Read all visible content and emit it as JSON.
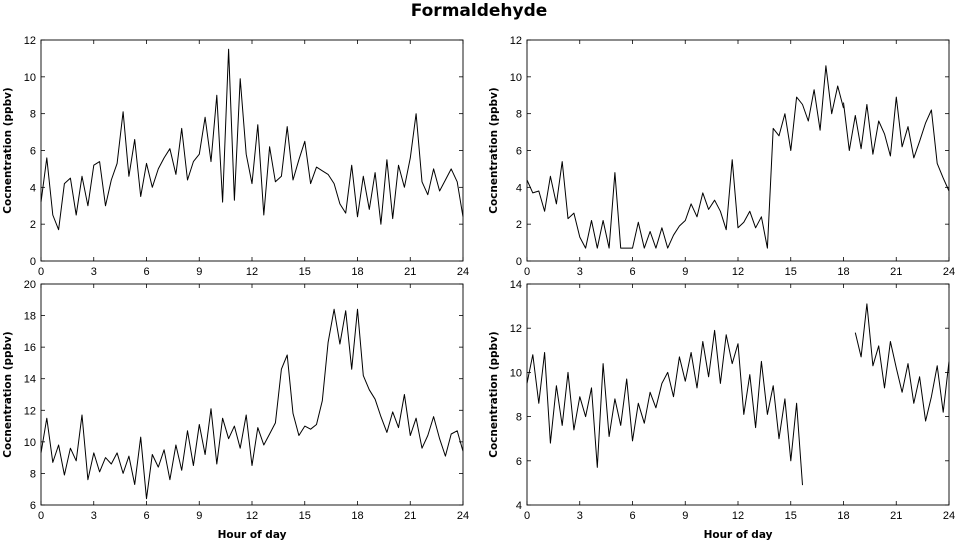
{
  "title": "Formaldehyde",
  "chart_data": [
    {
      "type": "line",
      "title": "",
      "xlabel": "",
      "ylabel": "Cocnentration (ppbv)",
      "xlim": [
        0,
        24
      ],
      "ylim": [
        0,
        12
      ],
      "xticks": [
        0,
        3,
        6,
        9,
        12,
        15,
        18,
        21,
        24
      ],
      "yticks": [
        0,
        2,
        4,
        6,
        8,
        10,
        12
      ],
      "grid": false,
      "series": [
        {
          "x": [
            0.0,
            0.33,
            0.67,
            1.0,
            1.33,
            1.67,
            2.0,
            2.33,
            2.67,
            3.0,
            3.33,
            3.67,
            4.0,
            4.33,
            4.67,
            5.0,
            5.33,
            5.67,
            6.0,
            6.33,
            6.67,
            7.0,
            7.33,
            7.67,
            8.0,
            8.33,
            8.67,
            9.0,
            9.33,
            9.67,
            10.0,
            10.33,
            10.67,
            11.0,
            11.33,
            11.67,
            12.0,
            12.33,
            12.67,
            13.0,
            13.33,
            13.67,
            14.0,
            14.33,
            14.67,
            15.0,
            15.33,
            15.67,
            16.0,
            16.33,
            16.67,
            17.0,
            17.33,
            17.67,
            18.0,
            18.33,
            18.67,
            19.0,
            19.33,
            19.67,
            20.0,
            20.33,
            20.67,
            21.0,
            21.33,
            21.67,
            22.0,
            22.33,
            22.67,
            23.0,
            23.33,
            23.67,
            24.0
          ],
          "y": [
            3.2,
            5.6,
            2.5,
            1.7,
            4.2,
            4.5,
            2.5,
            4.6,
            3.0,
            5.2,
            5.4,
            3.0,
            4.4,
            5.3,
            8.1,
            4.6,
            6.6,
            3.5,
            5.3,
            4.0,
            5.0,
            5.6,
            6.1,
            4.7,
            7.2,
            4.4,
            5.4,
            5.8,
            7.8,
            5.4,
            9.0,
            3.2,
            11.5,
            3.3,
            9.9,
            5.8,
            4.2,
            7.4,
            2.5,
            6.2,
            4.3,
            4.6,
            7.3,
            4.4,
            5.5,
            6.5,
            4.2,
            5.1,
            4.9,
            4.7,
            4.2,
            3.1,
            2.6,
            5.2,
            2.4,
            4.6,
            2.8,
            4.8,
            2.0,
            5.5,
            2.3,
            5.2,
            4.0,
            5.6,
            8.0,
            4.3,
            3.6,
            5.0,
            3.8,
            4.4,
            5.0,
            4.3,
            2.4
          ]
        }
      ]
    },
    {
      "type": "line",
      "title": "",
      "xlabel": "",
      "ylabel": "Cocnentration (ppbv)",
      "xlim": [
        0,
        24
      ],
      "ylim": [
        0,
        12
      ],
      "xticks": [
        0,
        3,
        6,
        9,
        12,
        15,
        18,
        21,
        24
      ],
      "yticks": [
        0,
        2,
        4,
        6,
        8,
        10,
        12
      ],
      "grid": false,
      "series": [
        {
          "x": [
            0.0,
            0.33,
            0.67,
            1.0,
            1.33,
            1.67,
            2.0,
            2.33,
            2.67,
            3.0,
            3.33,
            3.67,
            4.0,
            4.33,
            4.67,
            5.0,
            5.33,
            5.67,
            6.0,
            6.33,
            6.67,
            7.0,
            7.33,
            7.67,
            8.0,
            8.33,
            8.67,
            9.0,
            9.33,
            9.67,
            10.0,
            10.33,
            10.67,
            11.0,
            11.33,
            11.67,
            12.0,
            12.33,
            12.67,
            13.0,
            13.33,
            13.67,
            14.0,
            14.33,
            14.67,
            15.0,
            15.33,
            15.67,
            16.0,
            16.33,
            16.67,
            17.0,
            17.33,
            17.67,
            18.0
          ],
          "y": [
            4.4,
            3.7,
            3.8,
            2.7,
            4.6,
            3.1,
            5.4,
            2.3,
            2.6,
            1.3,
            0.7,
            2.2,
            0.7,
            2.2,
            0.7,
            4.8,
            0.7,
            0.7,
            0.7,
            2.1,
            0.7,
            1.6,
            0.7,
            1.8,
            0.7,
            1.4,
            1.9,
            2.2,
            3.1,
            2.4,
            3.7,
            2.8,
            3.3,
            2.7,
            1.7,
            5.5,
            1.8,
            2.1,
            2.7,
            1.8,
            2.4,
            0.7,
            7.2,
            6.8,
            8.0,
            6.0,
            8.9,
            8.5,
            7.6,
            9.3,
            7.1,
            10.6,
            8.0,
            9.5,
            8.3
          ]
        },
        {
          "x": [
            18.0,
            18.33,
            18.67,
            19.0,
            19.33,
            19.67,
            20.0,
            20.33,
            20.67,
            21.0,
            21.33,
            21.67,
            22.0,
            22.33,
            22.67,
            23.0,
            23.33,
            23.67,
            24.0
          ],
          "y": [
            8.6,
            6.0,
            7.9,
            6.1,
            8.5,
            5.8,
            7.6,
            6.9,
            5.7,
            8.9,
            6.2,
            7.3,
            5.6,
            6.5,
            7.5,
            8.2,
            5.3,
            4.5,
            3.8
          ]
        }
      ]
    },
    {
      "type": "line",
      "title": "",
      "xlabel": "Hour of day",
      "ylabel": "Cocnentration (ppbv)",
      "xlim": [
        0,
        24
      ],
      "ylim": [
        6,
        20
      ],
      "xticks": [
        0,
        3,
        6,
        9,
        12,
        15,
        18,
        21,
        24
      ],
      "yticks": [
        6,
        8,
        10,
        12,
        14,
        16,
        18,
        20
      ],
      "grid": false,
      "series": [
        {
          "x": [
            0.0,
            0.33,
            0.67,
            1.0,
            1.33,
            1.67,
            2.0,
            2.33,
            2.67,
            3.0,
            3.33,
            3.67,
            4.0,
            4.33,
            4.67,
            5.0,
            5.33,
            5.67,
            6.0,
            6.33,
            6.67,
            7.0,
            7.33,
            7.67,
            8.0,
            8.33,
            8.67,
            9.0,
            9.33,
            9.67,
            10.0,
            10.33,
            10.67,
            11.0,
            11.33,
            11.67,
            12.0,
            12.33,
            12.67,
            13.0,
            13.33,
            13.67,
            14.0,
            14.33,
            14.67,
            15.0,
            15.33,
            15.67,
            16.0,
            16.33,
            16.67,
            17.0,
            17.33,
            17.67,
            18.0,
            18.33,
            18.67,
            19.0,
            19.33,
            19.67,
            20.0,
            20.33,
            20.67,
            21.0,
            21.33,
            21.67,
            22.0,
            22.33,
            22.67,
            23.0,
            23.33,
            23.67,
            24.0
          ],
          "y": [
            9.3,
            11.5,
            8.7,
            9.8,
            7.9,
            9.6,
            8.8,
            11.7,
            7.6,
            9.3,
            8.1,
            9.0,
            8.6,
            9.3,
            8.0,
            9.1,
            7.3,
            10.3,
            6.4,
            9.2,
            8.4,
            9.5,
            7.6,
            9.8,
            8.2,
            10.7,
            8.5,
            11.1,
            9.2,
            12.1,
            8.6,
            11.5,
            10.2,
            11.0,
            9.6,
            11.7,
            8.5,
            10.9,
            9.8,
            10.5,
            11.2,
            14.6,
            15.5,
            11.8,
            10.4,
            11.0,
            10.8,
            11.1,
            12.6,
            16.3,
            18.4,
            16.2,
            18.3,
            14.6,
            18.4,
            14.2,
            13.3,
            12.7,
            11.6,
            10.6,
            11.9,
            10.9,
            13.0,
            10.4,
            11.5,
            9.6,
            10.4,
            11.6,
            10.2,
            9.1,
            10.5,
            10.7,
            9.4
          ]
        }
      ]
    },
    {
      "type": "line",
      "title": "",
      "xlabel": "Hour of day",
      "ylabel": "Cocnentration (ppbv)",
      "xlim": [
        0,
        24
      ],
      "ylim": [
        4,
        14
      ],
      "xticks": [
        0,
        3,
        6,
        9,
        12,
        15,
        18,
        21,
        24
      ],
      "yticks": [
        4,
        6,
        8,
        10,
        12,
        14
      ],
      "grid": false,
      "series": [
        {
          "x": [
            0.0,
            0.33,
            0.67,
            1.0,
            1.33,
            1.67,
            2.0,
            2.33,
            2.67,
            3.0,
            3.33,
            3.67,
            4.0,
            4.33,
            4.67,
            5.0,
            5.33,
            5.67,
            6.0,
            6.33,
            6.67,
            7.0,
            7.33,
            7.67,
            8.0,
            8.33,
            8.67,
            9.0,
            9.33,
            9.67,
            10.0,
            10.33,
            10.67,
            11.0,
            11.33,
            11.67,
            12.0,
            12.33,
            12.67,
            13.0,
            13.33,
            13.67,
            14.0,
            14.33,
            14.67,
            15.0,
            15.33,
            15.67
          ],
          "y": [
            9.5,
            10.8,
            8.6,
            10.9,
            6.8,
            9.4,
            7.6,
            10.0,
            7.4,
            8.9,
            8.0,
            9.3,
            5.7,
            10.4,
            7.1,
            8.8,
            7.6,
            9.7,
            6.9,
            8.6,
            7.7,
            9.1,
            8.4,
            9.5,
            10.0,
            8.9,
            10.7,
            9.6,
            10.9,
            9.3,
            11.4,
            9.8,
            11.9,
            9.5,
            11.7,
            10.4,
            11.3,
            8.1,
            9.9,
            7.5,
            10.5,
            8.1,
            9.4,
            7.0,
            8.8,
            6.0,
            8.6,
            4.9
          ]
        },
        {
          "x": [
            18.67,
            19.0,
            19.33,
            19.67,
            20.0,
            20.33,
            20.67,
            21.0,
            21.33,
            21.67,
            22.0,
            22.33,
            22.67,
            23.0,
            23.33,
            23.67,
            24.0
          ],
          "y": [
            11.8,
            10.7,
            13.1,
            10.3,
            11.2,
            9.3,
            11.4,
            10.2,
            9.1,
            10.4,
            8.6,
            9.8,
            7.8,
            8.9,
            10.3,
            8.2,
            10.5
          ]
        }
      ]
    }
  ]
}
